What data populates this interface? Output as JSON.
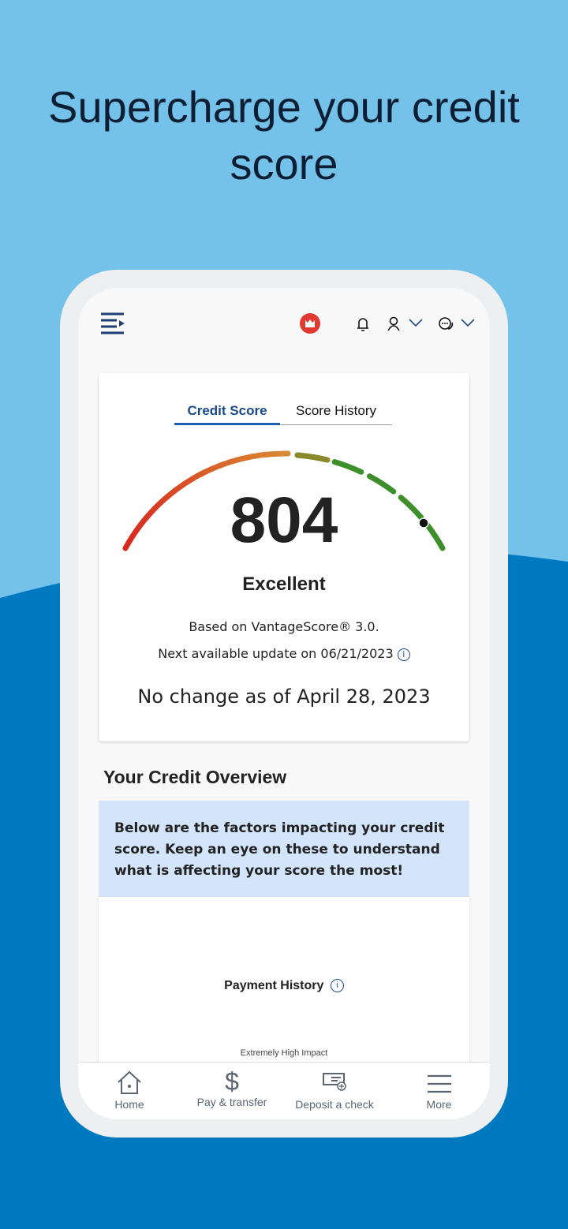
{
  "headline": "Supercharge your credit score",
  "colors": {
    "sky": "#74c1ea",
    "ocean": "#0079c1",
    "brand_red": "#e03a32",
    "tab_active": "#1a4a8a"
  },
  "header": {
    "menu_icon": "menu-collapse-icon",
    "logo": "bank-logo-icon",
    "icons": [
      "bell-icon",
      "user-icon",
      "chevron-down-icon",
      "chat-icon",
      "chevron-down-icon"
    ]
  },
  "credit_card": {
    "tabs": [
      {
        "label": "Credit Score",
        "active": true
      },
      {
        "label": "Score History",
        "active": false
      }
    ],
    "score": "804",
    "score_min": 300,
    "score_max": 850,
    "rating": "Excellent",
    "model": "Based on VantageScore® 3.0.",
    "next_update": "Next available update on 06/21/2023",
    "change": "No change as of April 28, 2023"
  },
  "overview": {
    "title": "Your Credit Overview",
    "banner": "Below are the factors impacting your credit score. Keep an eye on these to understand what is affecting your score the most!",
    "factor": {
      "title": "Payment History",
      "impact": "Extremely High Impact"
    }
  },
  "bottom_nav": [
    {
      "label": "Home",
      "icon": "home-icon"
    },
    {
      "label": "Pay & transfer",
      "icon": "dollar-icon"
    },
    {
      "label": "Deposit a check",
      "icon": "check-deposit-icon"
    },
    {
      "label": "More",
      "icon": "hamburger-icon"
    }
  ]
}
